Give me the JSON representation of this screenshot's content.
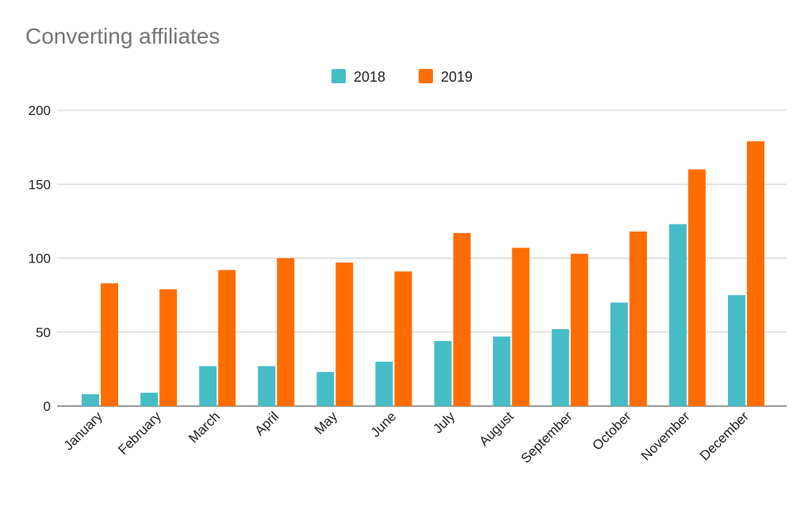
{
  "chart_data": {
    "type": "bar",
    "title": "Converting affiliates",
    "xlabel": "",
    "ylabel": "",
    "ylim": [
      0,
      200
    ],
    "yticks": [
      0,
      50,
      100,
      150,
      200
    ],
    "grid": true,
    "legend_position": "top",
    "categories": [
      "January",
      "February",
      "March",
      "April",
      "May",
      "June",
      "July",
      "August",
      "September",
      "October",
      "November",
      "December"
    ],
    "series": [
      {
        "name": "2018",
        "color": "#46BDC6",
        "values": [
          8,
          9,
          27,
          27,
          23,
          30,
          44,
          47,
          52,
          70,
          123,
          75
        ]
      },
      {
        "name": "2019",
        "color": "#FF6D01",
        "values": [
          83,
          79,
          92,
          100,
          97,
          91,
          117,
          107,
          103,
          118,
          160,
          179
        ]
      }
    ]
  }
}
